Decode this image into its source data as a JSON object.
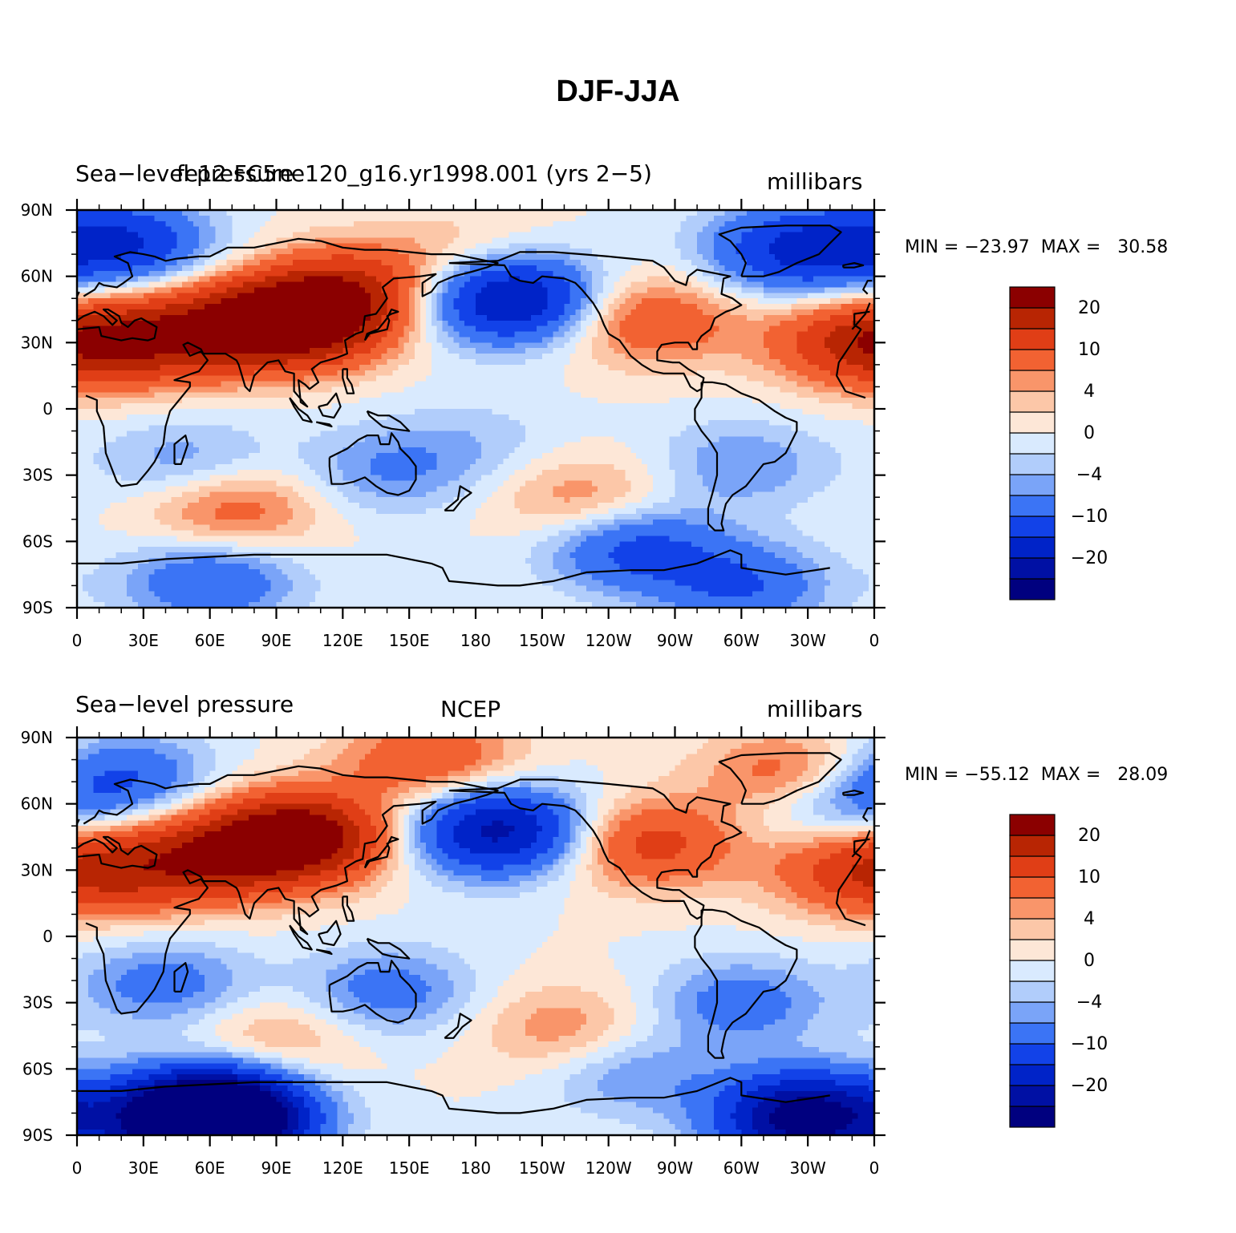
{
  "title": "DJF-JJA",
  "panels": [
    {
      "id": "model",
      "left_title": "Sea−level pressure",
      "center_title": "fe12 FC5ne120_g16.yr1998.001 (yrs 2−5)",
      "right_title": "millibars",
      "minmax": "MIN = −23.97  MAX =   30.58",
      "min": -23.97,
      "max": 30.58,
      "anomalies": [
        {
          "lon": 100,
          "lat": 40,
          "value": 26
        },
        {
          "lon": 60,
          "lat": 35,
          "value": 14
        },
        {
          "lon": 20,
          "lat": 30,
          "value": 12
        },
        {
          "lon": 125,
          "lat": 55,
          "value": 12
        },
        {
          "lon": 175,
          "lat": 70,
          "value": 4
        },
        {
          "lon": 258,
          "lat": 40,
          "value": 10
        },
        {
          "lon": 350,
          "lat": 30,
          "value": 12
        },
        {
          "lon": 195,
          "lat": 50,
          "value": -22
        },
        {
          "lon": 325,
          "lat": 72,
          "value": -16
        },
        {
          "lon": 20,
          "lat": 75,
          "value": -15
        },
        {
          "lon": 50,
          "lat": -25,
          "value": -6
        },
        {
          "lon": 140,
          "lat": -28,
          "value": -6
        },
        {
          "lon": 300,
          "lat": -25,
          "value": -6
        },
        {
          "lon": 70,
          "lat": -45,
          "value": 9
        },
        {
          "lon": 230,
          "lat": -42,
          "value": 7
        },
        {
          "lon": 250,
          "lat": -62,
          "value": -12
        },
        {
          "lon": 60,
          "lat": -78,
          "value": -10
        },
        {
          "lon": 300,
          "lat": -80,
          "value": -10
        },
        {
          "lon": 180,
          "lat": -15,
          "value": -3
        }
      ]
    },
    {
      "id": "ncep",
      "left_title": "Sea−level pressure",
      "center_title": "NCEP",
      "right_title": "millibars",
      "minmax": "MIN = −55.12  MAX =   28.09",
      "min": -55.12,
      "max": 28.09,
      "anomalies": [
        {
          "lon": 100,
          "lat": 45,
          "value": 26
        },
        {
          "lon": 60,
          "lat": 35,
          "value": 14
        },
        {
          "lon": 20,
          "lat": 30,
          "value": 9
        },
        {
          "lon": 160,
          "lat": 80,
          "value": 10
        },
        {
          "lon": 258,
          "lat": 42,
          "value": 12
        },
        {
          "lon": 325,
          "lat": 72,
          "value": 12
        },
        {
          "lon": 350,
          "lat": 30,
          "value": 10
        },
        {
          "lon": 190,
          "lat": 48,
          "value": -22
        },
        {
          "lon": 20,
          "lat": 72,
          "value": -10
        },
        {
          "lon": 340,
          "lat": 62,
          "value": -10
        },
        {
          "lon": 40,
          "lat": -22,
          "value": -8
        },
        {
          "lon": 140,
          "lat": -25,
          "value": -8
        },
        {
          "lon": 300,
          "lat": -30,
          "value": -8
        },
        {
          "lon": 90,
          "lat": -45,
          "value": 5
        },
        {
          "lon": 220,
          "lat": -42,
          "value": 6
        },
        {
          "lon": 250,
          "lat": -62,
          "value": -6
        },
        {
          "lon": 60,
          "lat": -82,
          "value": -55
        },
        {
          "lon": 330,
          "lat": -82,
          "value": -30
        }
      ]
    }
  ],
  "colorbar": {
    "colors": [
      "#00007f",
      "#0010a4",
      "#0023c8",
      "#1242e8",
      "#3b74f5",
      "#7aa4f8",
      "#b1cdfb",
      "#d9eafe",
      "#fde7d7",
      "#fcc7a8",
      "#f9956a",
      "#f26232",
      "#e03e16",
      "#b82503",
      "#8b0000"
    ],
    "labels": [
      "−20",
      "−10",
      "−4",
      "0",
      "4",
      "10",
      "20"
    ]
  },
  "x_ticks": [
    "0",
    "30E",
    "60E",
    "90E",
    "120E",
    "150E",
    "180",
    "150W",
    "120W",
    "90W",
    "60W",
    "30W",
    "0"
  ],
  "y_ticks": [
    "90N",
    "60N",
    "30N",
    "0",
    "30S",
    "60S",
    "90S"
  ]
}
